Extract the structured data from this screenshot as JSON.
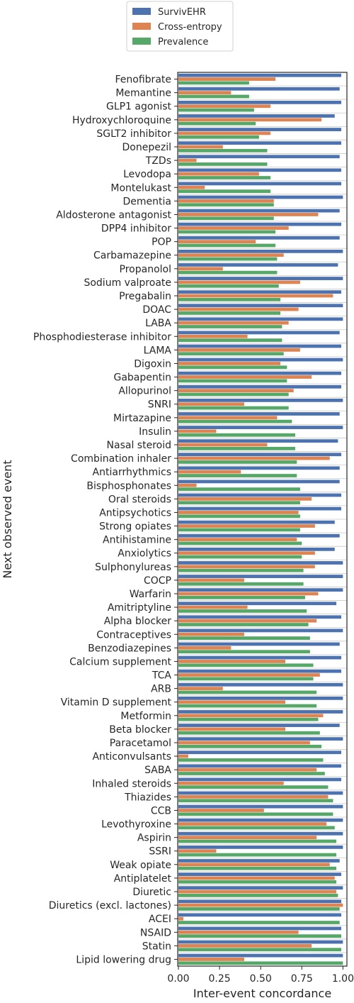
{
  "chart_data": {
    "type": "bar",
    "orientation": "horizontal",
    "xlabel": "Inter-event concordance",
    "ylabel": "Next observed event",
    "xlim": [
      0,
      1.02
    ],
    "xticks": [
      "0.00",
      "0.25",
      "0.50",
      "0.75",
      "1.00"
    ],
    "xtick_values": [
      0,
      0.25,
      0.5,
      0.75,
      1.0
    ],
    "grid": "horizontal separators",
    "legend_position": "top-center",
    "colors": {
      "SurvivEHR": "#4c72b0",
      "Cross-entropy": "#dd8452",
      "Prevalence": "#55a868"
    },
    "categories": [
      "Fenofibrate",
      "Memantine",
      "GLP1 agonist",
      "Hydroxychloroquine",
      "SGLT2 inhibitor",
      "Donepezil",
      "TZDs",
      "Levodopa",
      "Montelukast",
      "Dementia",
      "Aldosterone antagonist",
      "DPP4 inhibitor",
      "POP",
      "Carbamazepine",
      "Propanolol",
      "Sodium valproate",
      "Pregabalin",
      "DOAC",
      "LABA",
      "Phosphodiesterase inhibitor",
      "LAMA",
      "Digoxin",
      "Gabapentin",
      "Allopurinol",
      "SNRI",
      "Mirtazapine",
      "Insulin",
      "Nasal steroid",
      "Combination inhaler",
      "Antiarrhythmics",
      "Bisphosphonates",
      "Oral steroids",
      "Antipsychotics",
      "Strong opiates",
      "Antihistamine",
      "Anxiolytics",
      "Sulphonylureas",
      "COCP",
      "Warfarin",
      "Amitriptyline",
      "Alpha blocker",
      "Contraceptives",
      "Benzodiazepines",
      "Calcium supplement",
      "TCA",
      "ARB",
      "Vitamin D supplement",
      "Metformin",
      "Beta blocker",
      "Paracetamol",
      "Anticonvulsants",
      "SABA",
      "Inhaled steroids",
      "Thiazides",
      "CCB",
      "Levothyroxine",
      "Aspirin",
      "SSRI",
      "Weak opiate",
      "Antiplatelet",
      "Diuretic",
      "Diuretics (excl. lactones)",
      "ACEI",
      "NSAID",
      "Statin",
      "Lipid lowering drug"
    ],
    "series": [
      {
        "name": "SurvivEHR",
        "values": [
          0.99,
          0.98,
          0.99,
          0.95,
          0.99,
          0.99,
          0.98,
          0.99,
          0.99,
          1.0,
          0.98,
          0.99,
          0.98,
          1.0,
          0.97,
          1.0,
          0.99,
          1.0,
          1.0,
          0.98,
          0.99,
          1.0,
          0.99,
          0.99,
          1.0,
          0.98,
          1.0,
          0.97,
          0.99,
          0.98,
          0.98,
          0.99,
          0.99,
          0.95,
          0.98,
          0.95,
          1.0,
          1.0,
          1.0,
          0.96,
          0.99,
          1.0,
          0.98,
          0.99,
          0.99,
          1.0,
          1.0,
          1.0,
          0.98,
          1.0,
          0.99,
          0.99,
          0.99,
          1.0,
          1.0,
          1.0,
          1.0,
          1.0,
          0.98,
          0.99,
          1.0,
          0.99,
          0.99,
          0.99,
          1.0,
          1.0
        ]
      },
      {
        "name": "Cross-entropy",
        "values": [
          0.59,
          0.32,
          0.56,
          0.87,
          0.56,
          0.27,
          0.11,
          0.49,
          0.16,
          0.58,
          0.85,
          0.67,
          0.47,
          0.64,
          0.27,
          0.74,
          0.94,
          0.73,
          0.67,
          0.42,
          0.74,
          0.62,
          0.81,
          0.7,
          0.4,
          0.6,
          0.23,
          0.54,
          0.92,
          0.38,
          0.11,
          0.81,
          0.73,
          0.83,
          0.72,
          0.83,
          0.83,
          0.4,
          0.85,
          0.42,
          0.84,
          0.4,
          0.32,
          0.65,
          0.86,
          0.27,
          0.65,
          0.88,
          0.65,
          0.8,
          0.06,
          0.84,
          0.64,
          0.91,
          0.52,
          0.9,
          0.84,
          0.23,
          0.92,
          0.95,
          0.96,
          1.0,
          0.03,
          0.73,
          0.81,
          0.4
        ]
      },
      {
        "name": "Prevalence",
        "values": [
          0.43,
          0.43,
          0.46,
          0.47,
          0.49,
          0.54,
          0.54,
          0.56,
          0.56,
          0.58,
          0.58,
          0.59,
          0.59,
          0.6,
          0.6,
          0.61,
          0.62,
          0.62,
          0.63,
          0.63,
          0.64,
          0.66,
          0.66,
          0.67,
          0.67,
          0.69,
          0.71,
          0.71,
          0.72,
          0.72,
          0.74,
          0.74,
          0.74,
          0.74,
          0.75,
          0.75,
          0.76,
          0.76,
          0.77,
          0.78,
          0.79,
          0.8,
          0.8,
          0.82,
          0.82,
          0.84,
          0.84,
          0.85,
          0.86,
          0.87,
          0.88,
          0.89,
          0.91,
          0.94,
          0.94,
          0.95,
          0.96,
          0.96,
          0.96,
          0.96,
          0.97,
          0.98,
          0.98,
          0.99,
          0.99,
          1.0
        ]
      }
    ]
  }
}
